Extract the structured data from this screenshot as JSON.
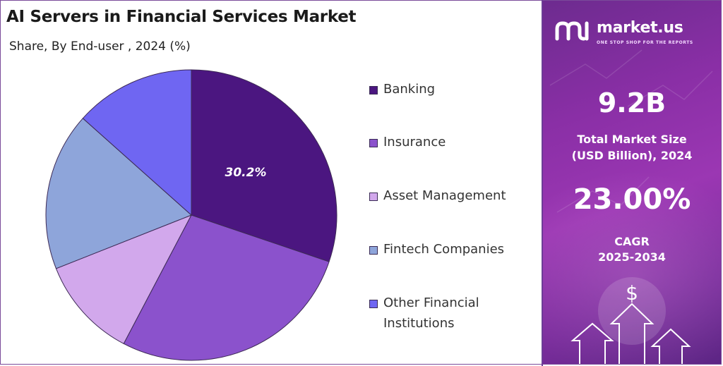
{
  "header": {
    "title": "AI Servers in Financial Services Market",
    "subtitle": "Share, By End-user , 2024 (%)"
  },
  "chart_data": {
    "type": "pie",
    "title": "AI Servers in Financial Services Market",
    "subtitle": "Share, By End-user , 2024 (%)",
    "categories": [
      "Banking",
      "Insurance",
      "Asset Management",
      "Fintech Companies",
      "Other Financial Institutions"
    ],
    "values": [
      30.2,
      27.5,
      11.3,
      17.6,
      13.4
    ],
    "colors": [
      "#4b1680",
      "#8b52cc",
      "#d2a8ec",
      "#8ea5da",
      "#6f66f2"
    ],
    "data_labels": [
      "30.2%",
      "",
      "",
      "",
      ""
    ],
    "legend": {
      "position": "right",
      "items": [
        "Banking",
        "Insurance",
        "Asset Management",
        "Fintech Companies",
        "Other Financial\nInstitutions"
      ]
    }
  },
  "side_panel": {
    "brand": "market.us",
    "tagline": "ONE STOP SHOP FOR THE REPORTS",
    "market_size_value": "9.2B",
    "market_size_label_line1": "Total Market Size",
    "market_size_label_line2": "(USD Billion), 2024",
    "cagr_value": "23.00%",
    "cagr_label_line1": "CAGR",
    "cagr_label_line2": "2025-2034",
    "dollar_symbol": "$",
    "colors": {
      "panel_top": "#6d2b8f",
      "panel_mid": "#9b37b3",
      "panel_bottom": "#5c2584"
    }
  }
}
